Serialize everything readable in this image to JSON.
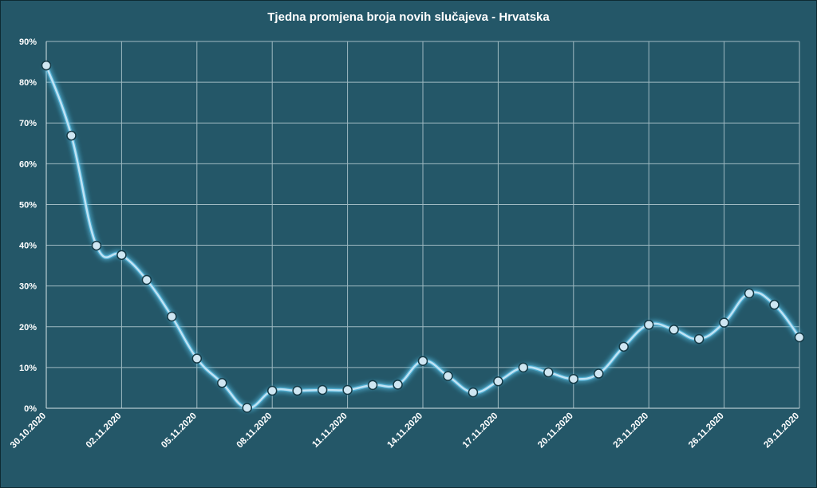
{
  "chart_data": {
    "type": "line",
    "title": "Tjedna promjena broja novih slučajeva - Hrvatska",
    "xlabel": "",
    "ylabel": "",
    "ylim": [
      0,
      90
    ],
    "y_ticks": [
      "0%",
      "10%",
      "20%",
      "30%",
      "40%",
      "50%",
      "60%",
      "70%",
      "80%",
      "90%"
    ],
    "x_tick_labels": [
      "30.10.2020",
      "02.11.2020",
      "05.11.2020",
      "08.11.2020",
      "11.11.2020",
      "14.11.2020",
      "17.11.2020",
      "20.11.2020",
      "23.11.2020",
      "26.11.2020",
      "29.11.2020"
    ],
    "grid": true,
    "series": [
      {
        "x": [
          "30.10.2020",
          "31.10.2020",
          "01.11.2020",
          "02.11.2020",
          "03.11.2020",
          "04.11.2020",
          "05.11.2020",
          "06.11.2020",
          "07.11.2020",
          "08.11.2020",
          "09.11.2020",
          "10.11.2020",
          "11.11.2020",
          "12.11.2020",
          "13.11.2020",
          "14.11.2020",
          "15.11.2020",
          "16.11.2020",
          "17.11.2020",
          "18.11.2020",
          "19.11.2020",
          "20.11.2020",
          "21.11.2020",
          "22.11.2020",
          "23.11.2020",
          "24.11.2020",
          "25.11.2020",
          "26.11.2020",
          "27.11.2020",
          "28.11.2020",
          "29.11.2020"
        ],
        "values": [
          84.1,
          66.9,
          39.9,
          37.6,
          31.5,
          22.5,
          12.2,
          6.2,
          0.1,
          4.3,
          4.3,
          4.5,
          4.5,
          5.7,
          5.8,
          11.6,
          7.9,
          3.9,
          6.6,
          10.0,
          8.8,
          7.2,
          8.5,
          15.1,
          20.5,
          19.3,
          17.0,
          21.0,
          28.2,
          25.4,
          17.4
        ]
      }
    ],
    "colors": {
      "background": "#245768",
      "grid": "#9fbac2",
      "line": "#bfe3f5",
      "marker_fill": "#cfe6f2",
      "marker_stroke": "#153a46",
      "glow": "#5ec8f0"
    }
  }
}
